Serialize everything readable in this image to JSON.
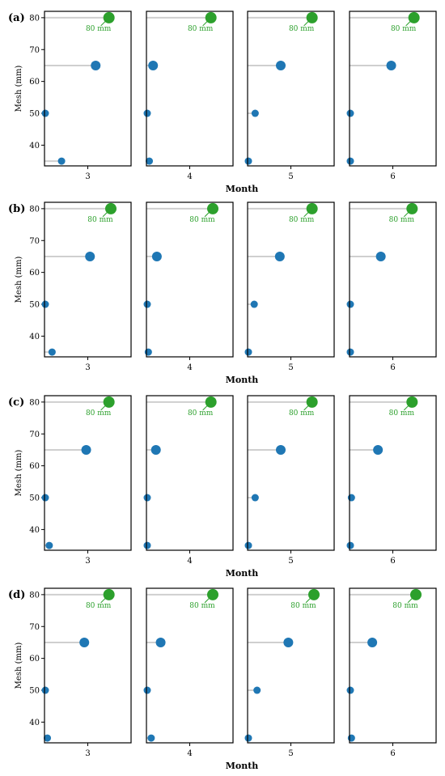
{
  "chart_data": {
    "type": "scatter",
    "facet_labels": [
      "(a)",
      "(b)",
      "(c)",
      "(d)"
    ],
    "ylabel": "Mesh (mm)",
    "xlabel": "Month",
    "months": [
      "3",
      "4",
      "5",
      "6"
    ],
    "y_ticks": [
      40,
      50,
      60,
      70,
      80
    ],
    "ylim": [
      33.5,
      82
    ],
    "mesh_sizes": [
      35,
      50,
      65,
      80
    ],
    "annotation_text": "80 mm",
    "highlight_mesh": 80,
    "colors": {
      "base": "#1f77b4",
      "highlight": "#2ca02c",
      "stem": "#cfcfcf",
      "frame": "#000000"
    },
    "panels": [
      {
        "label": "(a)",
        "months": [
          {
            "month": "3",
            "points": [
              {
                "mesh": 35,
                "value": 0.18
              },
              {
                "mesh": 50,
                "value": 0.0
              },
              {
                "mesh": 65,
                "value": 0.54
              },
              {
                "mesh": 80,
                "value": 0.68
              }
            ]
          },
          {
            "month": "4",
            "points": [
              {
                "mesh": 35,
                "value": 0.03
              },
              {
                "mesh": 50,
                "value": 0.0
              },
              {
                "mesh": 65,
                "value": 0.07
              },
              {
                "mesh": 80,
                "value": 0.68
              }
            ]
          },
          {
            "month": "5",
            "points": [
              {
                "mesh": 35,
                "value": 0.0
              },
              {
                "mesh": 50,
                "value": 0.08
              },
              {
                "mesh": 65,
                "value": 0.35
              },
              {
                "mesh": 80,
                "value": 0.68
              }
            ]
          },
          {
            "month": "6",
            "points": [
              {
                "mesh": 35,
                "value": 0.0
              },
              {
                "mesh": 50,
                "value": 0.0
              },
              {
                "mesh": 65,
                "value": 0.44
              },
              {
                "mesh": 80,
                "value": 0.68
              }
            ]
          }
        ]
      },
      {
        "label": "(b)",
        "months": [
          {
            "month": "3",
            "points": [
              {
                "mesh": 35,
                "value": 0.08
              },
              {
                "mesh": 50,
                "value": 0.0
              },
              {
                "mesh": 65,
                "value": 0.48
              },
              {
                "mesh": 80,
                "value": 0.7
              }
            ]
          },
          {
            "month": "4",
            "points": [
              {
                "mesh": 35,
                "value": 0.02
              },
              {
                "mesh": 50,
                "value": 0.0
              },
              {
                "mesh": 65,
                "value": 0.11
              },
              {
                "mesh": 80,
                "value": 0.7
              }
            ]
          },
          {
            "month": "5",
            "points": [
              {
                "mesh": 35,
                "value": 0.0
              },
              {
                "mesh": 50,
                "value": 0.07
              },
              {
                "mesh": 65,
                "value": 0.34
              },
              {
                "mesh": 80,
                "value": 0.68
              }
            ]
          },
          {
            "month": "6",
            "points": [
              {
                "mesh": 35,
                "value": 0.0
              },
              {
                "mesh": 50,
                "value": 0.0
              },
              {
                "mesh": 65,
                "value": 0.33
              },
              {
                "mesh": 80,
                "value": 0.66
              }
            ]
          }
        ]
      },
      {
        "label": "(c)",
        "months": [
          {
            "month": "3",
            "points": [
              {
                "mesh": 35,
                "value": 0.05
              },
              {
                "mesh": 50,
                "value": 0.0
              },
              {
                "mesh": 65,
                "value": 0.44
              },
              {
                "mesh": 80,
                "value": 0.68
              }
            ]
          },
          {
            "month": "4",
            "points": [
              {
                "mesh": 35,
                "value": 0.0
              },
              {
                "mesh": 50,
                "value": 0.0
              },
              {
                "mesh": 65,
                "value": 0.1
              },
              {
                "mesh": 80,
                "value": 0.68
              }
            ]
          },
          {
            "month": "5",
            "points": [
              {
                "mesh": 35,
                "value": 0.0
              },
              {
                "mesh": 50,
                "value": 0.08
              },
              {
                "mesh": 65,
                "value": 0.35
              },
              {
                "mesh": 80,
                "value": 0.68
              }
            ]
          },
          {
            "month": "6",
            "points": [
              {
                "mesh": 35,
                "value": 0.0
              },
              {
                "mesh": 50,
                "value": 0.02
              },
              {
                "mesh": 65,
                "value": 0.3
              },
              {
                "mesh": 80,
                "value": 0.66
              }
            ]
          }
        ]
      },
      {
        "label": "(d)",
        "months": [
          {
            "month": "3",
            "points": [
              {
                "mesh": 35,
                "value": 0.03
              },
              {
                "mesh": 50,
                "value": 0.0
              },
              {
                "mesh": 65,
                "value": 0.42
              },
              {
                "mesh": 80,
                "value": 0.68
              }
            ]
          },
          {
            "month": "4",
            "points": [
              {
                "mesh": 35,
                "value": 0.05
              },
              {
                "mesh": 50,
                "value": 0.0
              },
              {
                "mesh": 65,
                "value": 0.15
              },
              {
                "mesh": 80,
                "value": 0.7
              }
            ]
          },
          {
            "month": "5",
            "points": [
              {
                "mesh": 35,
                "value": 0.0
              },
              {
                "mesh": 50,
                "value": 0.1
              },
              {
                "mesh": 65,
                "value": 0.43
              },
              {
                "mesh": 80,
                "value": 0.7
              }
            ]
          },
          {
            "month": "6",
            "points": [
              {
                "mesh": 35,
                "value": 0.02
              },
              {
                "mesh": 50,
                "value": 0.0
              },
              {
                "mesh": 65,
                "value": 0.24
              },
              {
                "mesh": 80,
                "value": 0.7
              }
            ]
          }
        ]
      }
    ]
  }
}
